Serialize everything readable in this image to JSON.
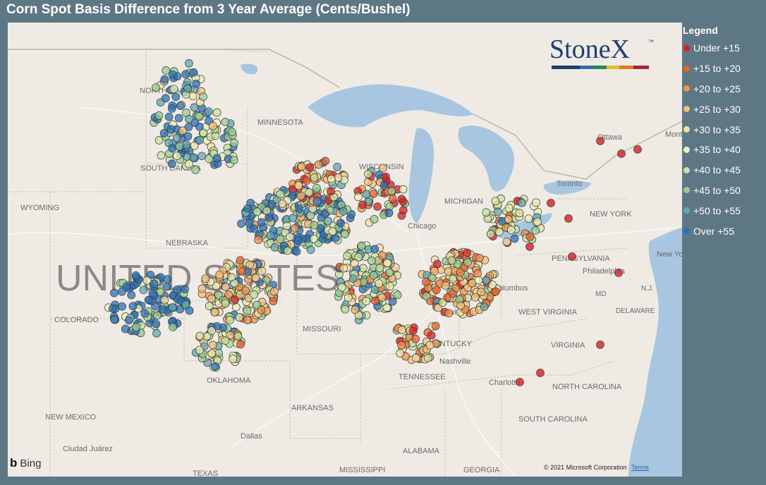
{
  "title": "Corn Spot Basis Difference from 3 Year Average (Cents/Bushel)",
  "legend": {
    "title": "Legend",
    "items": [
      {
        "label": "Under +15",
        "color": "#d42026"
      },
      {
        "label": "+15 to +20",
        "color": "#e8622e"
      },
      {
        "label": "+20 to +25",
        "color": "#f0924a"
      },
      {
        "label": "+25 to +30",
        "color": "#f5bd77"
      },
      {
        "label": "+30 to +35",
        "color": "#f6dea0"
      },
      {
        "label": "+35 to +40",
        "color": "#ecf0b7"
      },
      {
        "label": "+40 to +45",
        "color": "#c6e3a0"
      },
      {
        "label": "+45 to +50",
        "color": "#97cf93"
      },
      {
        "label": "+50 to +55",
        "color": "#5fa8b2"
      },
      {
        "label": "Over +55",
        "color": "#2b72b8"
      }
    ]
  },
  "logo": {
    "text": "StoneX",
    "tm": "™"
  },
  "map": {
    "country_label": "UNITED STATES",
    "state_labels": [
      "NORTH DAKOTA",
      "MINNESOTA",
      "SOUTH DAKOTA",
      "WYOMING",
      "NEBRASKA",
      "COLORADO",
      "MISSOURI",
      "OKLAHOMA",
      "ARKANSAS",
      "NEW MEXICO",
      "KENTUCKY",
      "TENNESSEE",
      "WEST VIRGINIA",
      "VIRGINIA",
      "NORTH CAROLINA",
      "SOUTH CAROLINA",
      "ALABAMA",
      "GEORGIA",
      "MISSISSIPPI",
      "TEXAS",
      "PENNSYLVANIA",
      "NEW YORK",
      "DELAWARE",
      "MD",
      "N.J.",
      "WISCONSIN",
      "MICHIGAN"
    ],
    "city_labels": [
      "Chicago",
      "Columbus",
      "Louisville",
      "Nashville",
      "Charlotte",
      "Toronto",
      "Ottawa",
      "Philadelphia",
      "New York",
      "Dallas",
      "Ciudad Juárez",
      "Montréal"
    ]
  },
  "footer": {
    "bing": "Bing",
    "copyright": "© 2021 Microsoft Corporation",
    "terms": "Terms"
  }
}
